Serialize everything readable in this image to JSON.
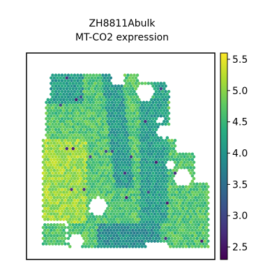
{
  "chart_data": {
    "type": "scatter",
    "title": "ZH8811Abulk",
    "subtitle": "MT-CO2 expression",
    "xlabel": "",
    "ylabel": "",
    "colormap": "viridis",
    "colorbar": {
      "min": 2.3,
      "max": 5.6,
      "ticks": [
        5.5,
        5.0,
        4.5,
        4.0,
        3.5,
        3.0,
        2.5
      ],
      "tick_labels": [
        "5.5",
        "5.0",
        "4.5",
        "4.0",
        "3.5",
        "3.0",
        "2.5"
      ]
    },
    "grid": false,
    "axes_ticks": false
  }
}
